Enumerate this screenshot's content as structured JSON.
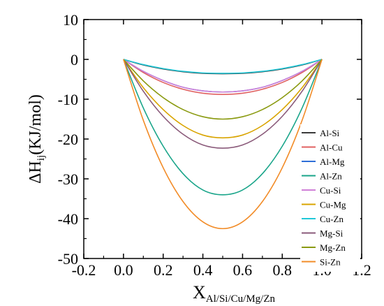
{
  "chart_data": {
    "type": "line",
    "xlabel_main": "X",
    "xlabel_sub": "Al/Si/Cu/Mg/Zn",
    "ylabel_main": "ΔH",
    "ylabel_sub": "ij",
    "ylabel_rest": "(KJ/mol)",
    "xlim": [
      -0.2,
      1.2
    ],
    "ylim": [
      -50,
      10
    ],
    "xticks": [
      -0.2,
      0.0,
      0.2,
      0.4,
      0.6,
      0.8,
      1.0,
      1.2
    ],
    "xtick_labels": [
      "-0.2",
      "0.0",
      "0.2",
      "0.4",
      "0.6",
      "0.8",
      "1.0",
      "1.2"
    ],
    "yticks": [
      10,
      0,
      -10,
      -20,
      -30,
      -40,
      -50
    ],
    "ytick_labels": [
      "10",
      "0",
      "-10",
      "-20",
      "-30",
      "-40",
      "-50"
    ],
    "grid": false,
    "legend_position": "right-middle",
    "x": [
      0.0,
      0.1,
      0.2,
      0.3,
      0.4,
      0.5,
      0.6,
      0.7,
      0.8,
      0.9,
      1.0
    ],
    "series": [
      {
        "name": "Al-Si",
        "color": "#3a3a3a",
        "values": [
          0,
          -1.4,
          -2.4,
          -3.1,
          -3.5,
          -3.6,
          -3.5,
          -3.1,
          -2.4,
          -1.4,
          0
        ]
      },
      {
        "name": "Al-Cu",
        "color": "#e06060",
        "values": [
          0,
          -3.3,
          -5.8,
          -7.5,
          -8.5,
          -8.8,
          -8.5,
          -7.5,
          -5.8,
          -3.3,
          0
        ]
      },
      {
        "name": "Al-Mg",
        "color": "#2f6fd8",
        "values": [
          0,
          -3.0,
          -5.3,
          -7.0,
          -7.9,
          -8.2,
          -7.9,
          -7.0,
          -5.3,
          -3.0,
          0
        ]
      },
      {
        "name": "Al-Zn",
        "color": "#1aa58a",
        "values": [
          0,
          -12.2,
          -21.8,
          -28.7,
          -32.8,
          -34.0,
          -32.8,
          -28.7,
          -21.8,
          -12.2,
          0
        ]
      },
      {
        "name": "Cu-Si",
        "color": "#d080d8",
        "values": [
          0,
          -3.0,
          -5.3,
          -7.0,
          -7.9,
          -8.2,
          -7.9,
          -7.0,
          -5.3,
          -3.0,
          0
        ]
      },
      {
        "name": "Cu-Mg",
        "color": "#d9a400",
        "values": [
          0,
          -7.1,
          -12.6,
          -16.6,
          -19.0,
          -19.7,
          -19.0,
          -16.6,
          -12.6,
          -7.1,
          0
        ]
      },
      {
        "name": "Cu-Zn",
        "color": "#1fc8d8",
        "values": [
          0,
          -1.3,
          -2.3,
          -3.0,
          -3.4,
          -3.5,
          -3.4,
          -3.0,
          -2.3,
          -1.3,
          0
        ]
      },
      {
        "name": "Mg-Si",
        "color": "#8a5a7a",
        "values": [
          0,
          -8.0,
          -14.3,
          -18.8,
          -21.5,
          -22.3,
          -21.5,
          -18.8,
          -14.3,
          -8.0,
          0
        ]
      },
      {
        "name": "Mg-Zn",
        "color": "#8a9a10",
        "values": [
          0,
          -5.4,
          -9.6,
          -12.6,
          -14.4,
          -15.0,
          -14.4,
          -12.6,
          -9.6,
          -5.4,
          0
        ]
      },
      {
        "name": "Si-Zn",
        "color": "#f28c28",
        "values": [
          0,
          -15.3,
          -27.2,
          -35.7,
          -40.8,
          -42.5,
          -40.8,
          -35.7,
          -27.2,
          -15.3,
          0
        ]
      }
    ]
  }
}
